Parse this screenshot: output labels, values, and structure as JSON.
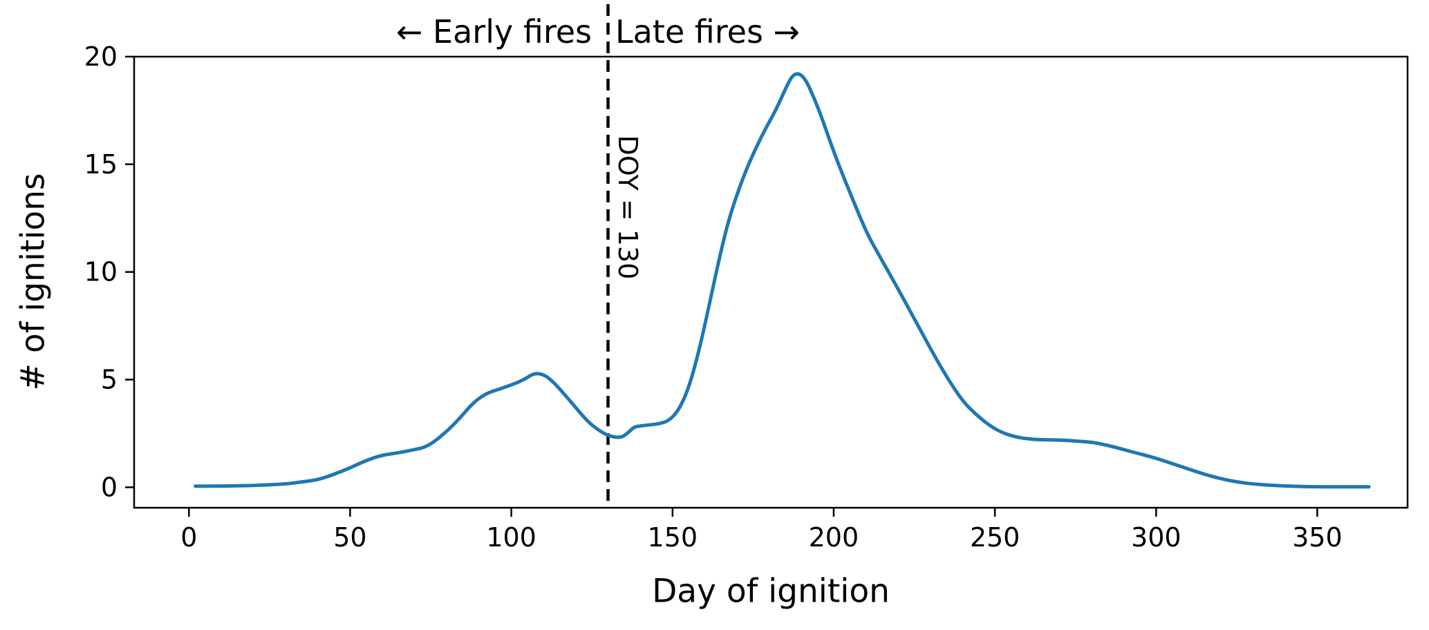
{
  "figure": {
    "background": "#ffffff",
    "annotations": {
      "early": "← Early fires",
      "late": "Late fires →"
    }
  },
  "chart_data": {
    "type": "line",
    "title": "",
    "xlabel": "Day of ignition",
    "ylabel": "# of ignitions",
    "xlim": [
      -17,
      378
    ],
    "ylim": [
      -0.95,
      20
    ],
    "x_ticks": [
      0,
      50,
      100,
      150,
      200,
      250,
      300,
      350
    ],
    "y_ticks": [
      0,
      5,
      10,
      15,
      20
    ],
    "grid": false,
    "line_color": "#1f77b4",
    "line_width": 5,
    "axis_color": "#000000",
    "vline": {
      "x": 130,
      "style": "dashed",
      "color": "#000000",
      "label": "DOY = 130"
    },
    "series": [
      {
        "name": "ignitions",
        "x": [
          2,
          10,
          20,
          30,
          35,
          40,
          45,
          50,
          55,
          60,
          65,
          70,
          73,
          76,
          80,
          84,
          88,
          92,
          96,
          100,
          104,
          107,
          110,
          113,
          116,
          120,
          124,
          128,
          131,
          134,
          136,
          138,
          140,
          143,
          146,
          149,
          152,
          155,
          158,
          161,
          164,
          167,
          170,
          173,
          176,
          179,
          182,
          185,
          187,
          189,
          191,
          193,
          196,
          199,
          202,
          205,
          208,
          211,
          214,
          217,
          220,
          224,
          228,
          232,
          236,
          240,
          244,
          248,
          252,
          256,
          260,
          265,
          270,
          275,
          280,
          285,
          290,
          295,
          300,
          305,
          310,
          315,
          320,
          325,
          330,
          340,
          350,
          360,
          366
        ],
        "y": [
          0.05,
          0.05,
          0.08,
          0.15,
          0.25,
          0.35,
          0.6,
          0.9,
          1.25,
          1.5,
          1.6,
          1.75,
          1.85,
          2.1,
          2.6,
          3.2,
          3.9,
          4.35,
          4.55,
          4.75,
          5.0,
          5.3,
          5.25,
          4.9,
          4.4,
          3.7,
          3.0,
          2.55,
          2.35,
          2.3,
          2.5,
          2.8,
          2.85,
          2.9,
          2.95,
          3.1,
          3.6,
          4.6,
          6.2,
          8.2,
          10.3,
          12.2,
          13.6,
          14.8,
          15.8,
          16.7,
          17.5,
          18.5,
          19.1,
          19.25,
          19.0,
          18.4,
          17.3,
          16.0,
          14.8,
          13.7,
          12.6,
          11.6,
          10.8,
          10.0,
          9.2,
          8.1,
          7.0,
          5.9,
          4.9,
          4.0,
          3.4,
          2.9,
          2.55,
          2.35,
          2.25,
          2.2,
          2.2,
          2.15,
          2.1,
          1.95,
          1.75,
          1.55,
          1.35,
          1.1,
          0.85,
          0.6,
          0.4,
          0.25,
          0.15,
          0.05,
          0.02,
          0.02,
          0.02
        ]
      }
    ]
  }
}
